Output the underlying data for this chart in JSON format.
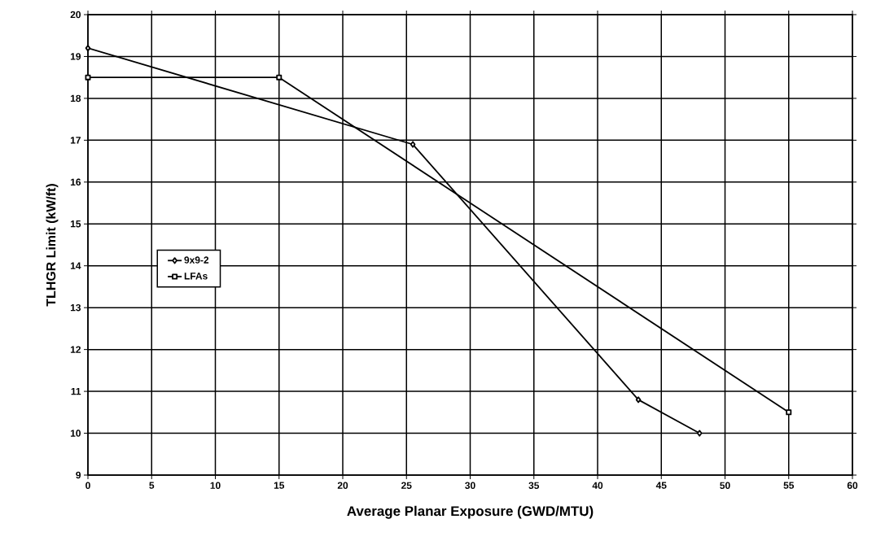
{
  "chart_data": {
    "type": "line",
    "xlabel": "Average Planar Exposure (GWD/MTU)",
    "ylabel": "TLHGR Limit (kW/ft)",
    "xlim": [
      0,
      60
    ],
    "xticks": [
      0,
      5,
      10,
      15,
      20,
      25,
      30,
      35,
      40,
      45,
      50,
      55,
      60
    ],
    "ylim": [
      9,
      20
    ],
    "yticks": [
      9,
      10,
      11,
      12,
      13,
      14,
      15,
      16,
      17,
      18,
      19,
      20
    ],
    "grid": true,
    "legend": "left",
    "line_style": "solid",
    "series": [
      {
        "name": "9x9-2",
        "color": "#000000",
        "marker": "diamond",
        "x": [
          0,
          25.5,
          43.2,
          48
        ],
        "values": [
          19.2,
          16.9,
          10.8,
          10.0
        ]
      },
      {
        "name": "LFAs",
        "color": "#000000",
        "marker": "square",
        "x": [
          0,
          15,
          55
        ],
        "values": [
          18.5,
          18.5,
          10.5
        ]
      }
    ]
  }
}
